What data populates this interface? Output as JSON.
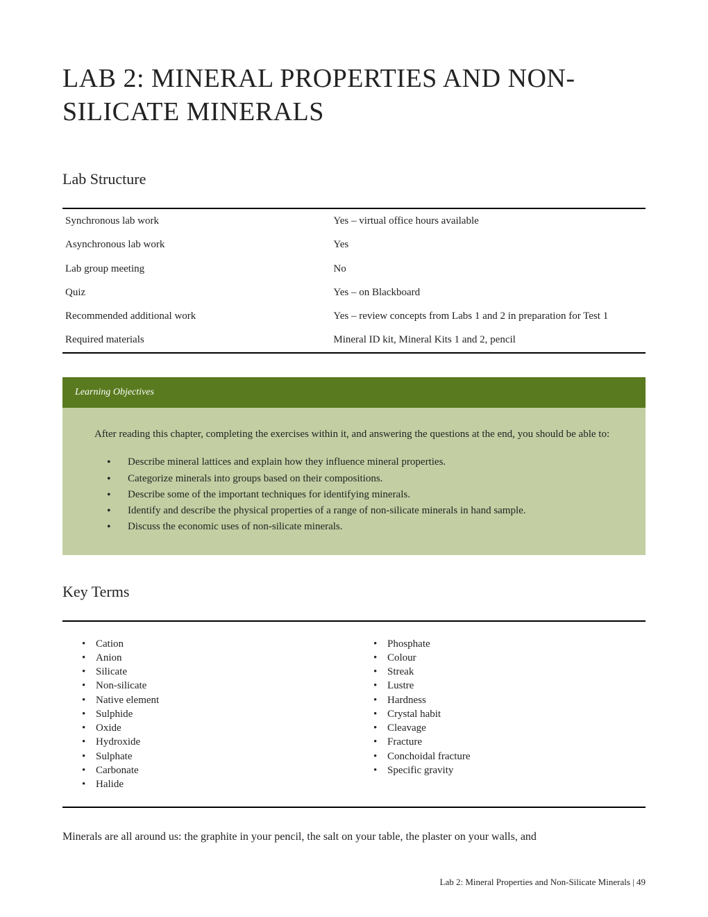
{
  "title": "LAB 2: MINERAL PROPERTIES AND NON-SILICATE MINERALS",
  "sections": {
    "structure_heading": "Lab Structure",
    "key_terms_heading": "Key Terms"
  },
  "structure_rows": [
    {
      "label": "Synchronous lab work",
      "value": "Yes – virtual office hours available"
    },
    {
      "label": "Asynchronous lab work",
      "value": "Yes"
    },
    {
      "label": "Lab group meeting",
      "value": "No"
    },
    {
      "label": "Quiz",
      "value": "Yes – on Blackboard"
    },
    {
      "label": "Recommended additional work",
      "value": "Yes – review concepts from Labs 1 and 2 in preparation for Test 1"
    },
    {
      "label": "Required materials",
      "value": "Mineral ID kit, Mineral Kits 1 and 2, pencil"
    }
  ],
  "objectives": {
    "header": "Learning Objectives",
    "intro": "After reading this chapter, completing the exercises within it, and answering the questions at the end, you should be able to:",
    "items": [
      "Describe mineral lattices and explain how they influence mineral properties.",
      "Categorize minerals into groups based on their compositions.",
      "Describe some of the important techniques for identifying minerals.",
      "Identify and describe the physical properties of a range of non-silicate minerals in hand sample.",
      "Discuss the economic uses of non-silicate minerals."
    ],
    "header_bg": "#5a7a1f",
    "body_bg": "#c3cfa3"
  },
  "key_terms": {
    "col1": [
      "Cation",
      "Anion",
      "Silicate",
      "Non-silicate",
      "Native element",
      "Sulphide",
      "Oxide",
      "Hydroxide",
      "Sulphate",
      "Carbonate",
      "Halide"
    ],
    "col2": [
      "Phosphate",
      "Colour",
      "Streak",
      "Lustre",
      "Hardness",
      "Crystal habit",
      "Cleavage",
      "Fracture",
      "Conchoidal fracture",
      "Specific gravity"
    ]
  },
  "body_para": "Minerals are all around us: the graphite in your pencil, the salt on your table, the plaster on your walls, and",
  "footer": "Lab 2: Mineral Properties and Non-Silicate Minerals  |  49"
}
